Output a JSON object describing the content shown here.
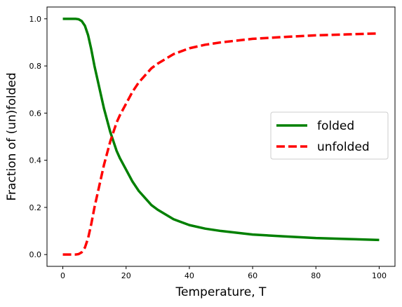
{
  "chart_data": {
    "type": "line",
    "title": "",
    "xlabel": "Temperature, T",
    "ylabel": "Fraction of (un)folded",
    "xlim": [
      -5,
      105
    ],
    "ylim": [
      -0.05,
      1.05
    ],
    "xticks": [
      "0",
      "20",
      "40",
      "60",
      "80",
      "100"
    ],
    "yticks": [
      "0.0",
      "0.2",
      "0.4",
      "0.6",
      "0.8",
      "1.0"
    ],
    "grid": false,
    "legend": "center-right",
    "x": [
      0,
      2,
      4,
      5,
      6,
      7,
      8,
      9,
      10,
      11,
      12,
      13,
      14,
      15,
      16,
      17,
      18,
      20,
      22,
      24,
      26,
      28,
      30,
      35,
      40,
      45,
      50,
      60,
      70,
      80,
      90,
      100
    ],
    "series": [
      {
        "name": "folded",
        "color": "#008000",
        "style": "solid",
        "values": [
          1.0,
          1.0,
          1.0,
          0.998,
          0.99,
          0.97,
          0.93,
          0.87,
          0.8,
          0.74,
          0.68,
          0.62,
          0.57,
          0.52,
          0.48,
          0.44,
          0.41,
          0.36,
          0.31,
          0.27,
          0.24,
          0.21,
          0.19,
          0.15,
          0.125,
          0.11,
          0.1,
          0.085,
          0.077,
          0.07,
          0.066,
          0.062
        ]
      },
      {
        "name": "unfolded",
        "color": "#ff0000",
        "style": "dashed",
        "values": [
          0.0,
          0.0,
          0.0,
          0.002,
          0.01,
          0.03,
          0.07,
          0.13,
          0.2,
          0.26,
          0.32,
          0.38,
          0.43,
          0.48,
          0.52,
          0.56,
          0.59,
          0.64,
          0.69,
          0.73,
          0.76,
          0.79,
          0.81,
          0.85,
          0.875,
          0.89,
          0.9,
          0.915,
          0.923,
          0.93,
          0.934,
          0.938
        ]
      }
    ]
  }
}
